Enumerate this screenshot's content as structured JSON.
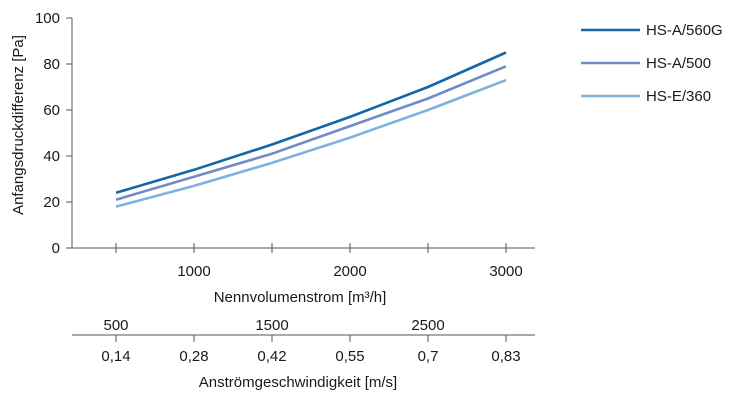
{
  "chart_data": {
    "type": "line",
    "ylabel": "Anfangsdruckdifferenz [Pa]",
    "xlabel": "Nennvolumenstrom [m³/h]",
    "ylim": [
      0,
      100
    ],
    "y_ticks": [
      "0",
      "20",
      "40",
      "60",
      "80",
      "100"
    ],
    "xlim": [
      500,
      3000
    ],
    "x_ticks": [
      "1000",
      "2000",
      "3000"
    ],
    "x": [
      500,
      1000,
      1500,
      2000,
      2500,
      3000
    ],
    "series": [
      {
        "name": "HS-A/560G",
        "color": "#1466a8",
        "values": [
          24,
          34,
          45,
          57,
          70,
          85
        ]
      },
      {
        "name": "HS-A/500",
        "color": "#6f8cc6",
        "values": [
          21,
          31,
          41,
          53,
          65,
          79
        ]
      },
      {
        "name": "HS-E/360",
        "color": "#7fb2dd",
        "values": [
          18,
          27,
          37,
          48,
          60,
          73
        ]
      }
    ],
    "grid": false,
    "legend_position": "top-right",
    "secondary_axes": [
      {
        "ticks": [
          "500",
          "1500",
          "2500"
        ]
      },
      {
        "label": "Anströmgeschwindigkeit [m/s]",
        "ticks": [
          "0,14",
          "0,28",
          "0,42",
          "0,55",
          "0,7",
          "0,83"
        ]
      }
    ]
  }
}
